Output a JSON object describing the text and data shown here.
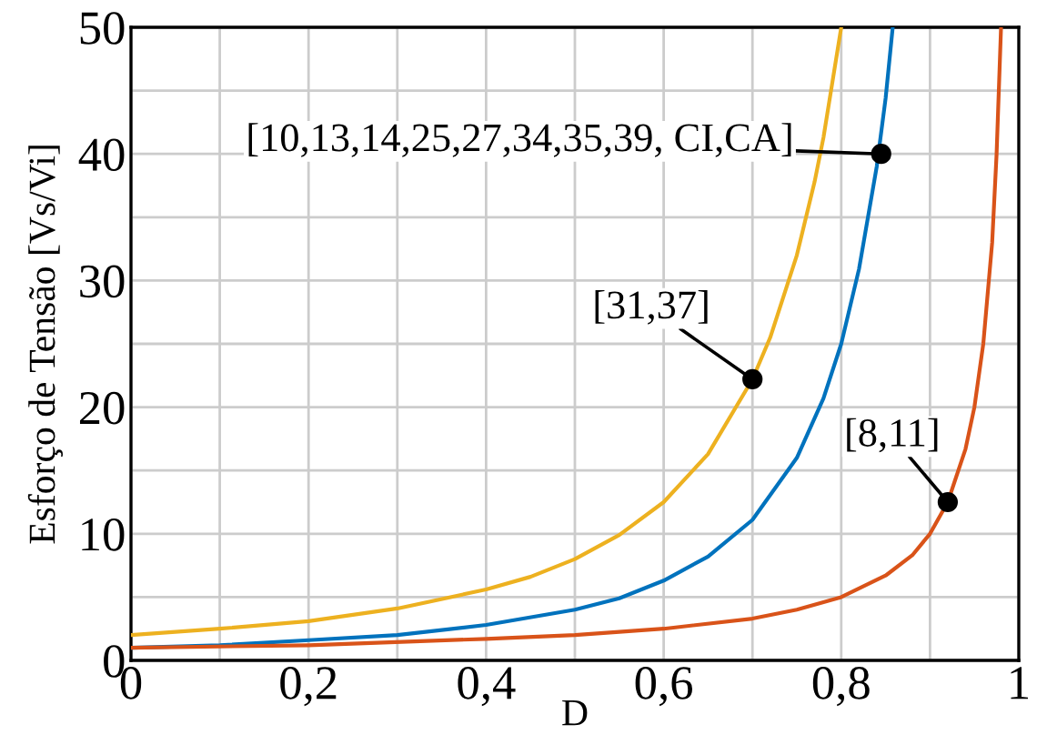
{
  "chart_data": {
    "type": "line",
    "xlabel": "D",
    "ylabel": "Esforço de Tensão [Vs/Vi]",
    "series": [
      {
        "color": "#edb120",
        "x": [
          0,
          0.1,
          0.2,
          0.3,
          0.4,
          0.45,
          0.5,
          0.55,
          0.6,
          0.65,
          0.7,
          0.72,
          0.75,
          0.77,
          0.78,
          0.8
        ],
        "values": [
          2,
          2.5,
          3.1,
          4.1,
          5.6,
          6.6,
          8,
          9.9,
          12.5,
          16.3,
          22.2,
          25.5,
          32,
          37.8,
          41.3,
          50
        ]
      },
      {
        "color": "#0072bd",
        "x": [
          0,
          0.1,
          0.2,
          0.3,
          0.4,
          0.5,
          0.55,
          0.6,
          0.65,
          0.7,
          0.75,
          0.78,
          0.8,
          0.82,
          0.84,
          0.85,
          0.858
        ],
        "values": [
          1,
          1.2,
          1.6,
          2,
          2.8,
          4,
          4.9,
          6.3,
          8.2,
          11.1,
          16,
          20.7,
          25,
          30.9,
          39,
          44.4,
          50
        ]
      },
      {
        "color": "#d95319",
        "x": [
          0,
          0.2,
          0.4,
          0.5,
          0.6,
          0.7,
          0.75,
          0.8,
          0.85,
          0.88,
          0.9,
          0.92,
          0.94,
          0.95,
          0.96,
          0.97,
          0.975,
          0.98
        ],
        "values": [
          1,
          1.2,
          1.7,
          2,
          2.5,
          3.3,
          4,
          5,
          6.7,
          8.3,
          10,
          12.5,
          16.7,
          20,
          25,
          33,
          40,
          50
        ]
      }
    ],
    "xlim": [
      0,
      1
    ],
    "ylim": [
      0,
      50
    ],
    "xticks": [
      0,
      {
        "value": 0.1,
        "label": null
      },
      {
        "value": 0.2,
        "label": "0,2"
      },
      {
        "value": 0.3,
        "label": null
      },
      {
        "value": 0.4,
        "label": "0,4"
      },
      {
        "value": 0.5,
        "label": null
      },
      {
        "value": 0.6,
        "label": "0,6"
      },
      {
        "value": 0.7,
        "label": null
      },
      {
        "value": 0.8,
        "label": "0,8"
      },
      {
        "value": 0.9,
        "label": null
      },
      1
    ],
    "yticks": [
      0,
      {
        "value": 5,
        "label": null
      },
      10,
      {
        "value": 15,
        "label": null
      },
      20,
      {
        "value": 25,
        "label": null
      },
      30,
      {
        "value": 35,
        "label": null
      },
      40,
      {
        "value": 45,
        "label": null
      },
      50
    ],
    "grid": true,
    "marker": "none",
    "line_style": "solid",
    "annotations": [
      {
        "text": "[10,13,14,25,27,34,35,39, CI,CA]",
        "x": 0.845,
        "y": 40
      },
      {
        "text": "[31,37]",
        "x": 0.7,
        "y": 22.2
      },
      {
        "text": "[8,11]",
        "x": 0.92,
        "y": 12.5
      }
    ]
  }
}
